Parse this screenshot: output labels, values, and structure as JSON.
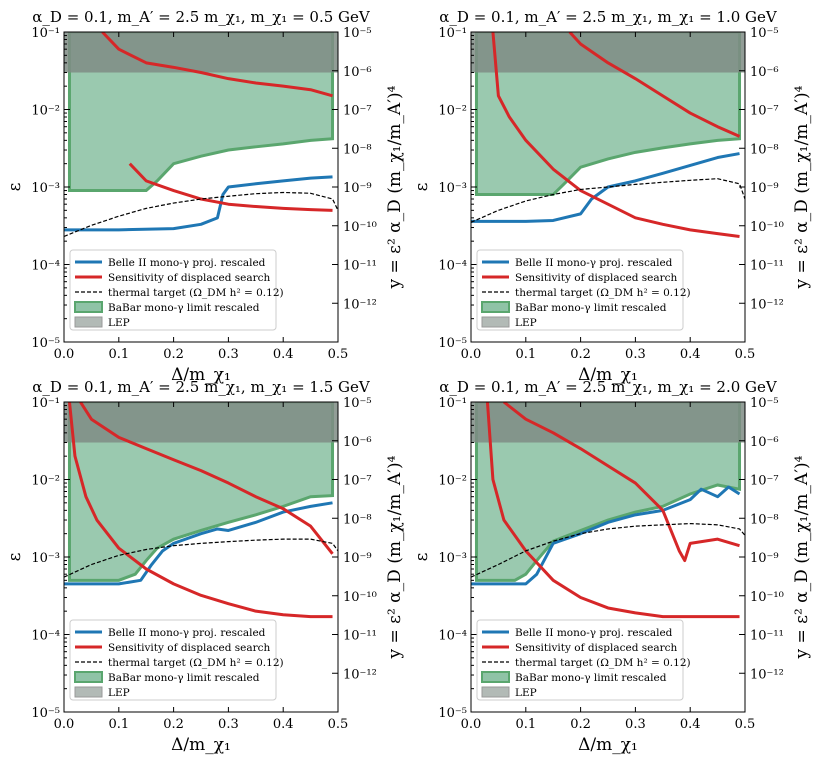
{
  "colors": {
    "belle": "#1f77b4",
    "displaced": "#d62728",
    "thermal": "#000000",
    "babar_fill": "#8fc3a6",
    "babar_edge": "#5aa66e",
    "lep_fill": "#7f8c85"
  },
  "axis_text": {
    "x_label": "Δ/m_χ₁",
    "y_left_label": "ε",
    "y_right_label": "y = ε² α_D (m_χ₁/m_A′)⁴"
  },
  "legend": {
    "belle": "Belle II mono-γ proj. rescaled",
    "displaced": "Sensitivity of displaced search",
    "thermal": "thermal target (Ω_DM h² = 0.12)",
    "babar": "BaBar mono-γ limit rescaled",
    "lep": "LEP"
  },
  "chart_data": [
    {
      "type": "line",
      "title": "α_D = 0.1, m_A′ = 2.5 m_χ₁, m_χ₁ = 0.5 GeV",
      "xlim": [
        0,
        0.5
      ],
      "ylim_log10": [
        -5,
        -1
      ],
      "y_right_log10": [
        -13,
        -5
      ],
      "x_ticks": [
        "0.0",
        "0.1",
        "0.2",
        "0.3",
        "0.4",
        "0.5"
      ],
      "y_ticks": [
        "10⁻⁵",
        "10⁻⁴",
        "10⁻³",
        "10⁻²",
        "10⁻¹"
      ],
      "y_right_ticks": [
        "10⁻¹²",
        "10⁻¹¹",
        "10⁻¹⁰",
        "10⁻⁹",
        "10⁻⁸",
        "10⁻⁷",
        "10⁻⁶",
        "10⁻⁵"
      ],
      "legend_placement": "lower-left",
      "lep_ymin": 0.03,
      "babar_xmin": 0.01,
      "series": [
        {
          "key": "belle",
          "name": "Belle II mono-γ proj. rescaled",
          "x": [
            0.0,
            0.1,
            0.2,
            0.25,
            0.28,
            0.29,
            0.3,
            0.35,
            0.4,
            0.45,
            0.49
          ],
          "y": [
            0.00028,
            0.00028,
            0.00029,
            0.00033,
            0.0004,
            0.0008,
            0.001,
            0.0011,
            0.0012,
            0.0013,
            0.00135
          ]
        },
        {
          "key": "displaced",
          "name": "Sensitivity of displaced search",
          "x": [
            0.07,
            0.1,
            0.15,
            0.2,
            0.25,
            0.3,
            0.35,
            0.4,
            0.45,
            0.49
          ],
          "y": [
            0.1,
            0.06,
            0.04,
            0.035,
            0.03,
            0.025,
            0.022,
            0.02,
            0.018,
            0.015
          ]
        },
        {
          "key": "displaced",
          "name": "",
          "x": [
            0.12,
            0.15,
            0.2,
            0.25,
            0.3,
            0.35,
            0.4,
            0.45,
            0.49
          ],
          "y": [
            0.002,
            0.0012,
            0.0009,
            0.0007,
            0.0006,
            0.00056,
            0.00053,
            0.00051,
            0.0005
          ]
        },
        {
          "key": "thermal",
          "name": "thermal target (Ω_DM h² = 0.12)",
          "x": [
            0.0,
            0.05,
            0.1,
            0.15,
            0.2,
            0.25,
            0.3,
            0.35,
            0.4,
            0.45,
            0.49,
            0.5
          ],
          "y": [
            0.00023,
            0.00032,
            0.00042,
            0.00053,
            0.00062,
            0.0007,
            0.00076,
            0.00082,
            0.00085,
            0.00083,
            0.0007,
            0.0005
          ]
        },
        {
          "key": "babar",
          "name": "BaBar mono-γ limit rescaled",
          "x": [
            0.01,
            0.15,
            0.17,
            0.2,
            0.25,
            0.3,
            0.35,
            0.4,
            0.45,
            0.49
          ],
          "y": [
            0.0009,
            0.0009,
            0.0012,
            0.002,
            0.0025,
            0.003,
            0.0033,
            0.0036,
            0.004,
            0.0042
          ]
        }
      ]
    },
    {
      "type": "line",
      "title": "α_D = 0.1, m_A′ = 2.5 m_χ₁, m_χ₁ = 1.0 GeV",
      "xlim": [
        0,
        0.5
      ],
      "ylim_log10": [
        -5,
        -1
      ],
      "y_right_log10": [
        -13,
        -5
      ],
      "x_ticks": [
        "0.0",
        "0.1",
        "0.2",
        "0.3",
        "0.4",
        "0.5"
      ],
      "y_ticks": [
        "10⁻⁵",
        "10⁻⁴",
        "10⁻³",
        "10⁻²",
        "10⁻¹"
      ],
      "y_right_ticks": [
        "10⁻¹²",
        "10⁻¹¹",
        "10⁻¹⁰",
        "10⁻⁹",
        "10⁻⁸",
        "10⁻⁷",
        "10⁻⁶",
        "10⁻⁵"
      ],
      "legend_placement": "lower-left",
      "lep_ymin": 0.03,
      "babar_xmin": 0.01,
      "series": [
        {
          "key": "belle",
          "name": "Belle II mono-γ proj. rescaled",
          "x": [
            0.0,
            0.1,
            0.15,
            0.2,
            0.22,
            0.25,
            0.3,
            0.35,
            0.4,
            0.45,
            0.49
          ],
          "y": [
            0.00036,
            0.00036,
            0.00037,
            0.00045,
            0.0007,
            0.001,
            0.0012,
            0.0015,
            0.0019,
            0.0024,
            0.0027
          ]
        },
        {
          "key": "displaced",
          "name": "Sensitivity of displaced search",
          "x": [
            0.18,
            0.2,
            0.25,
            0.3,
            0.35,
            0.4,
            0.45,
            0.49
          ],
          "y": [
            0.1,
            0.07,
            0.04,
            0.025,
            0.015,
            0.009,
            0.006,
            0.0045
          ]
        },
        {
          "key": "displaced",
          "name": "",
          "x": [
            0.04,
            0.05,
            0.07,
            0.1,
            0.15,
            0.2,
            0.25,
            0.3,
            0.35,
            0.4,
            0.45,
            0.49
          ],
          "y": [
            0.1,
            0.015,
            0.008,
            0.004,
            0.0017,
            0.0009,
            0.0006,
            0.0004,
            0.00033,
            0.00028,
            0.00025,
            0.00023
          ]
        },
        {
          "key": "thermal",
          "name": "thermal target (Ω_DM h² = 0.12)",
          "x": [
            0.0,
            0.05,
            0.1,
            0.15,
            0.2,
            0.25,
            0.3,
            0.35,
            0.4,
            0.45,
            0.49,
            0.5
          ],
          "y": [
            0.00035,
            0.0005,
            0.00066,
            0.0008,
            0.00093,
            0.001,
            0.00108,
            0.00115,
            0.00122,
            0.00128,
            0.0011,
            0.0007
          ]
        },
        {
          "key": "babar",
          "name": "BaBar mono-γ limit rescaled",
          "x": [
            0.01,
            0.15,
            0.17,
            0.2,
            0.25,
            0.3,
            0.35,
            0.4,
            0.45,
            0.49
          ],
          "y": [
            0.0008,
            0.0008,
            0.0011,
            0.0018,
            0.0023,
            0.0028,
            0.0032,
            0.0036,
            0.004,
            0.0042
          ]
        }
      ]
    },
    {
      "type": "line",
      "title": "α_D = 0.1, m_A′ = 2.5 m_χ₁, m_χ₁ = 1.5 GeV",
      "xlim": [
        0,
        0.5
      ],
      "ylim_log10": [
        -5,
        -1
      ],
      "y_right_log10": [
        -13,
        -5
      ],
      "x_ticks": [
        "0.0",
        "0.1",
        "0.2",
        "0.3",
        "0.4",
        "0.5"
      ],
      "y_ticks": [
        "10⁻⁵",
        "10⁻⁴",
        "10⁻³",
        "10⁻²",
        "10⁻¹"
      ],
      "y_right_ticks": [
        "10⁻¹²",
        "10⁻¹¹",
        "10⁻¹⁰",
        "10⁻⁹",
        "10⁻⁸",
        "10⁻⁷",
        "10⁻⁶",
        "10⁻⁵"
      ],
      "legend_placement": "lower-left",
      "lep_ymin": 0.03,
      "babar_xmin": 0.01,
      "series": [
        {
          "key": "belle",
          "name": "Belle II mono-γ proj. rescaled",
          "x": [
            0.0,
            0.1,
            0.14,
            0.16,
            0.18,
            0.2,
            0.25,
            0.28,
            0.3,
            0.35,
            0.4,
            0.45,
            0.49
          ],
          "y": [
            0.00045,
            0.00045,
            0.0005,
            0.0008,
            0.0012,
            0.0015,
            0.002,
            0.0023,
            0.0022,
            0.0028,
            0.0038,
            0.0045,
            0.005
          ]
        },
        {
          "key": "displaced",
          "name": "Sensitivity of displaced search",
          "x": [
            0.03,
            0.05,
            0.1,
            0.15,
            0.2,
            0.25,
            0.3,
            0.35,
            0.4,
            0.45,
            0.49
          ],
          "y": [
            0.1,
            0.06,
            0.035,
            0.025,
            0.018,
            0.013,
            0.009,
            0.006,
            0.0042,
            0.0025,
            0.0011
          ]
        },
        {
          "key": "displaced",
          "name": "",
          "x": [
            0.01,
            0.02,
            0.04,
            0.06,
            0.1,
            0.15,
            0.2,
            0.25,
            0.3,
            0.35,
            0.4,
            0.45,
            0.49
          ],
          "y": [
            0.1,
            0.02,
            0.006,
            0.003,
            0.0013,
            0.0007,
            0.00045,
            0.00032,
            0.00025,
            0.0002,
            0.00018,
            0.00017,
            0.00017
          ]
        },
        {
          "key": "thermal",
          "name": "thermal target (Ω_DM h² = 0.12)",
          "x": [
            0.0,
            0.05,
            0.1,
            0.15,
            0.2,
            0.25,
            0.3,
            0.35,
            0.4,
            0.45,
            0.49,
            0.5
          ],
          "y": [
            0.00055,
            0.0008,
            0.00105,
            0.00125,
            0.0014,
            0.0015,
            0.00158,
            0.00165,
            0.0017,
            0.0017,
            0.0015,
            0.0012
          ]
        },
        {
          "key": "babar",
          "name": "BaBar mono-γ limit rescaled",
          "x": [
            0.01,
            0.1,
            0.13,
            0.15,
            0.17,
            0.2,
            0.25,
            0.3,
            0.35,
            0.4,
            0.45,
            0.49
          ],
          "y": [
            0.0005,
            0.0005,
            0.0006,
            0.0009,
            0.0013,
            0.0017,
            0.0022,
            0.0028,
            0.0035,
            0.0045,
            0.006,
            0.0062
          ]
        }
      ]
    },
    {
      "type": "line",
      "title": "α_D = 0.1, m_A′ = 2.5 m_χ₁, m_χ₁ = 2.0 GeV",
      "xlim": [
        0,
        0.5
      ],
      "ylim_log10": [
        -5,
        -1
      ],
      "y_right_log10": [
        -13,
        -5
      ],
      "x_ticks": [
        "0.0",
        "0.1",
        "0.2",
        "0.3",
        "0.4",
        "0.5"
      ],
      "y_ticks": [
        "10⁻⁵",
        "10⁻⁴",
        "10⁻³",
        "10⁻²",
        "10⁻¹"
      ],
      "y_right_ticks": [
        "10⁻¹²",
        "10⁻¹¹",
        "10⁻¹⁰",
        "10⁻⁹",
        "10⁻⁸",
        "10⁻⁷",
        "10⁻⁶",
        "10⁻⁵"
      ],
      "legend_placement": "lower-left",
      "lep_ymin": 0.03,
      "babar_xmin": 0.01,
      "series": [
        {
          "key": "belle",
          "name": "Belle II mono-γ proj. rescaled",
          "x": [
            0.0,
            0.1,
            0.12,
            0.15,
            0.2,
            0.25,
            0.3,
            0.35,
            0.4,
            0.42,
            0.45,
            0.47,
            0.49
          ],
          "y": [
            0.00045,
            0.00045,
            0.0006,
            0.0015,
            0.002,
            0.0028,
            0.0035,
            0.004,
            0.0055,
            0.0075,
            0.006,
            0.008,
            0.0065
          ]
        },
        {
          "key": "displaced",
          "name": "Sensitivity of displaced search",
          "x": [
            0.06,
            0.1,
            0.15,
            0.2,
            0.25,
            0.3,
            0.35,
            0.38,
            0.39,
            0.4,
            0.45,
            0.49
          ],
          "y": [
            0.1,
            0.06,
            0.04,
            0.025,
            0.015,
            0.009,
            0.004,
            0.0012,
            0.0009,
            0.0015,
            0.0017,
            0.0014
          ]
        },
        {
          "key": "displaced",
          "name": "",
          "x": [
            0.03,
            0.04,
            0.06,
            0.1,
            0.15,
            0.2,
            0.25,
            0.3,
            0.35,
            0.4,
            0.45,
            0.49
          ],
          "y": [
            0.1,
            0.01,
            0.003,
            0.0012,
            0.0005,
            0.0003,
            0.00022,
            0.00019,
            0.00017,
            0.00017,
            0.00017,
            0.00017
          ]
        },
        {
          "key": "thermal",
          "name": "thermal target (Ω_DM h² = 0.12)",
          "x": [
            0.0,
            0.05,
            0.1,
            0.15,
            0.2,
            0.25,
            0.3,
            0.35,
            0.4,
            0.45,
            0.49,
            0.5
          ],
          "y": [
            0.00055,
            0.0008,
            0.0012,
            0.0016,
            0.002,
            0.0023,
            0.0025,
            0.0026,
            0.0027,
            0.0026,
            0.0023,
            0.0019
          ]
        },
        {
          "key": "babar",
          "name": "BaBar mono-γ limit rescaled",
          "x": [
            0.01,
            0.08,
            0.1,
            0.12,
            0.15,
            0.2,
            0.25,
            0.3,
            0.35,
            0.4,
            0.45,
            0.49
          ],
          "y": [
            0.0005,
            0.0005,
            0.0006,
            0.0009,
            0.0016,
            0.0022,
            0.003,
            0.0038,
            0.0045,
            0.0065,
            0.0085,
            0.0075
          ]
        }
      ]
    }
  ]
}
